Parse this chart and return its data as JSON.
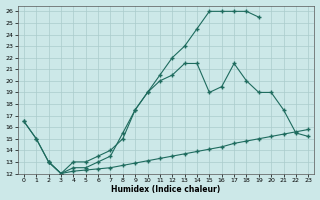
{
  "xlabel": "Humidex (Indice chaleur)",
  "bg_color": "#cce8e8",
  "line_color": "#1e6b5e",
  "grid_color": "#aacccc",
  "xlim": [
    -0.5,
    23.5
  ],
  "ylim": [
    12,
    26.5
  ],
  "xticks": [
    0,
    1,
    2,
    3,
    4,
    5,
    6,
    7,
    8,
    9,
    10,
    11,
    12,
    13,
    14,
    15,
    16,
    17,
    18,
    19,
    20,
    21,
    22,
    23
  ],
  "yticks": [
    12,
    13,
    14,
    15,
    16,
    17,
    18,
    19,
    20,
    21,
    22,
    23,
    24,
    25,
    26
  ],
  "s1_x": [
    0,
    1,
    2,
    3,
    4,
    5,
    6,
    7,
    8,
    9,
    10,
    11,
    12,
    13,
    14,
    15,
    16,
    17,
    18,
    19
  ],
  "s1_y": [
    16.5,
    15.0,
    13.0,
    12.0,
    13.0,
    13.0,
    13.5,
    14.0,
    15.0,
    17.5,
    19.0,
    20.5,
    22.0,
    23.0,
    24.5,
    26.0,
    26.0,
    26.0,
    26.0,
    25.5
  ],
  "s2_x": [
    0,
    1,
    2,
    3,
    4,
    5,
    6,
    7,
    8,
    9,
    10,
    11,
    12,
    13,
    14,
    15,
    16,
    17,
    18,
    19,
    20,
    21,
    22,
    23
  ],
  "s2_y": [
    16.5,
    15.0,
    13.0,
    12.0,
    12.2,
    12.3,
    12.4,
    12.5,
    12.7,
    12.9,
    13.1,
    13.3,
    13.5,
    13.7,
    13.9,
    14.1,
    14.3,
    14.6,
    14.8,
    15.0,
    15.2,
    15.4,
    15.6,
    15.8
  ],
  "s3_x": [
    2,
    3,
    4,
    5,
    6,
    7,
    8,
    9,
    10,
    11,
    12,
    13,
    14,
    15,
    16,
    17,
    18,
    19,
    20,
    21,
    22,
    23
  ],
  "s3_y": [
    13.0,
    12.0,
    12.5,
    12.5,
    13.0,
    13.5,
    15.5,
    17.5,
    19.0,
    20.0,
    20.5,
    21.5,
    21.5,
    19.0,
    19.5,
    21.5,
    20.0,
    19.0,
    19.0,
    17.5,
    15.5,
    15.2
  ]
}
